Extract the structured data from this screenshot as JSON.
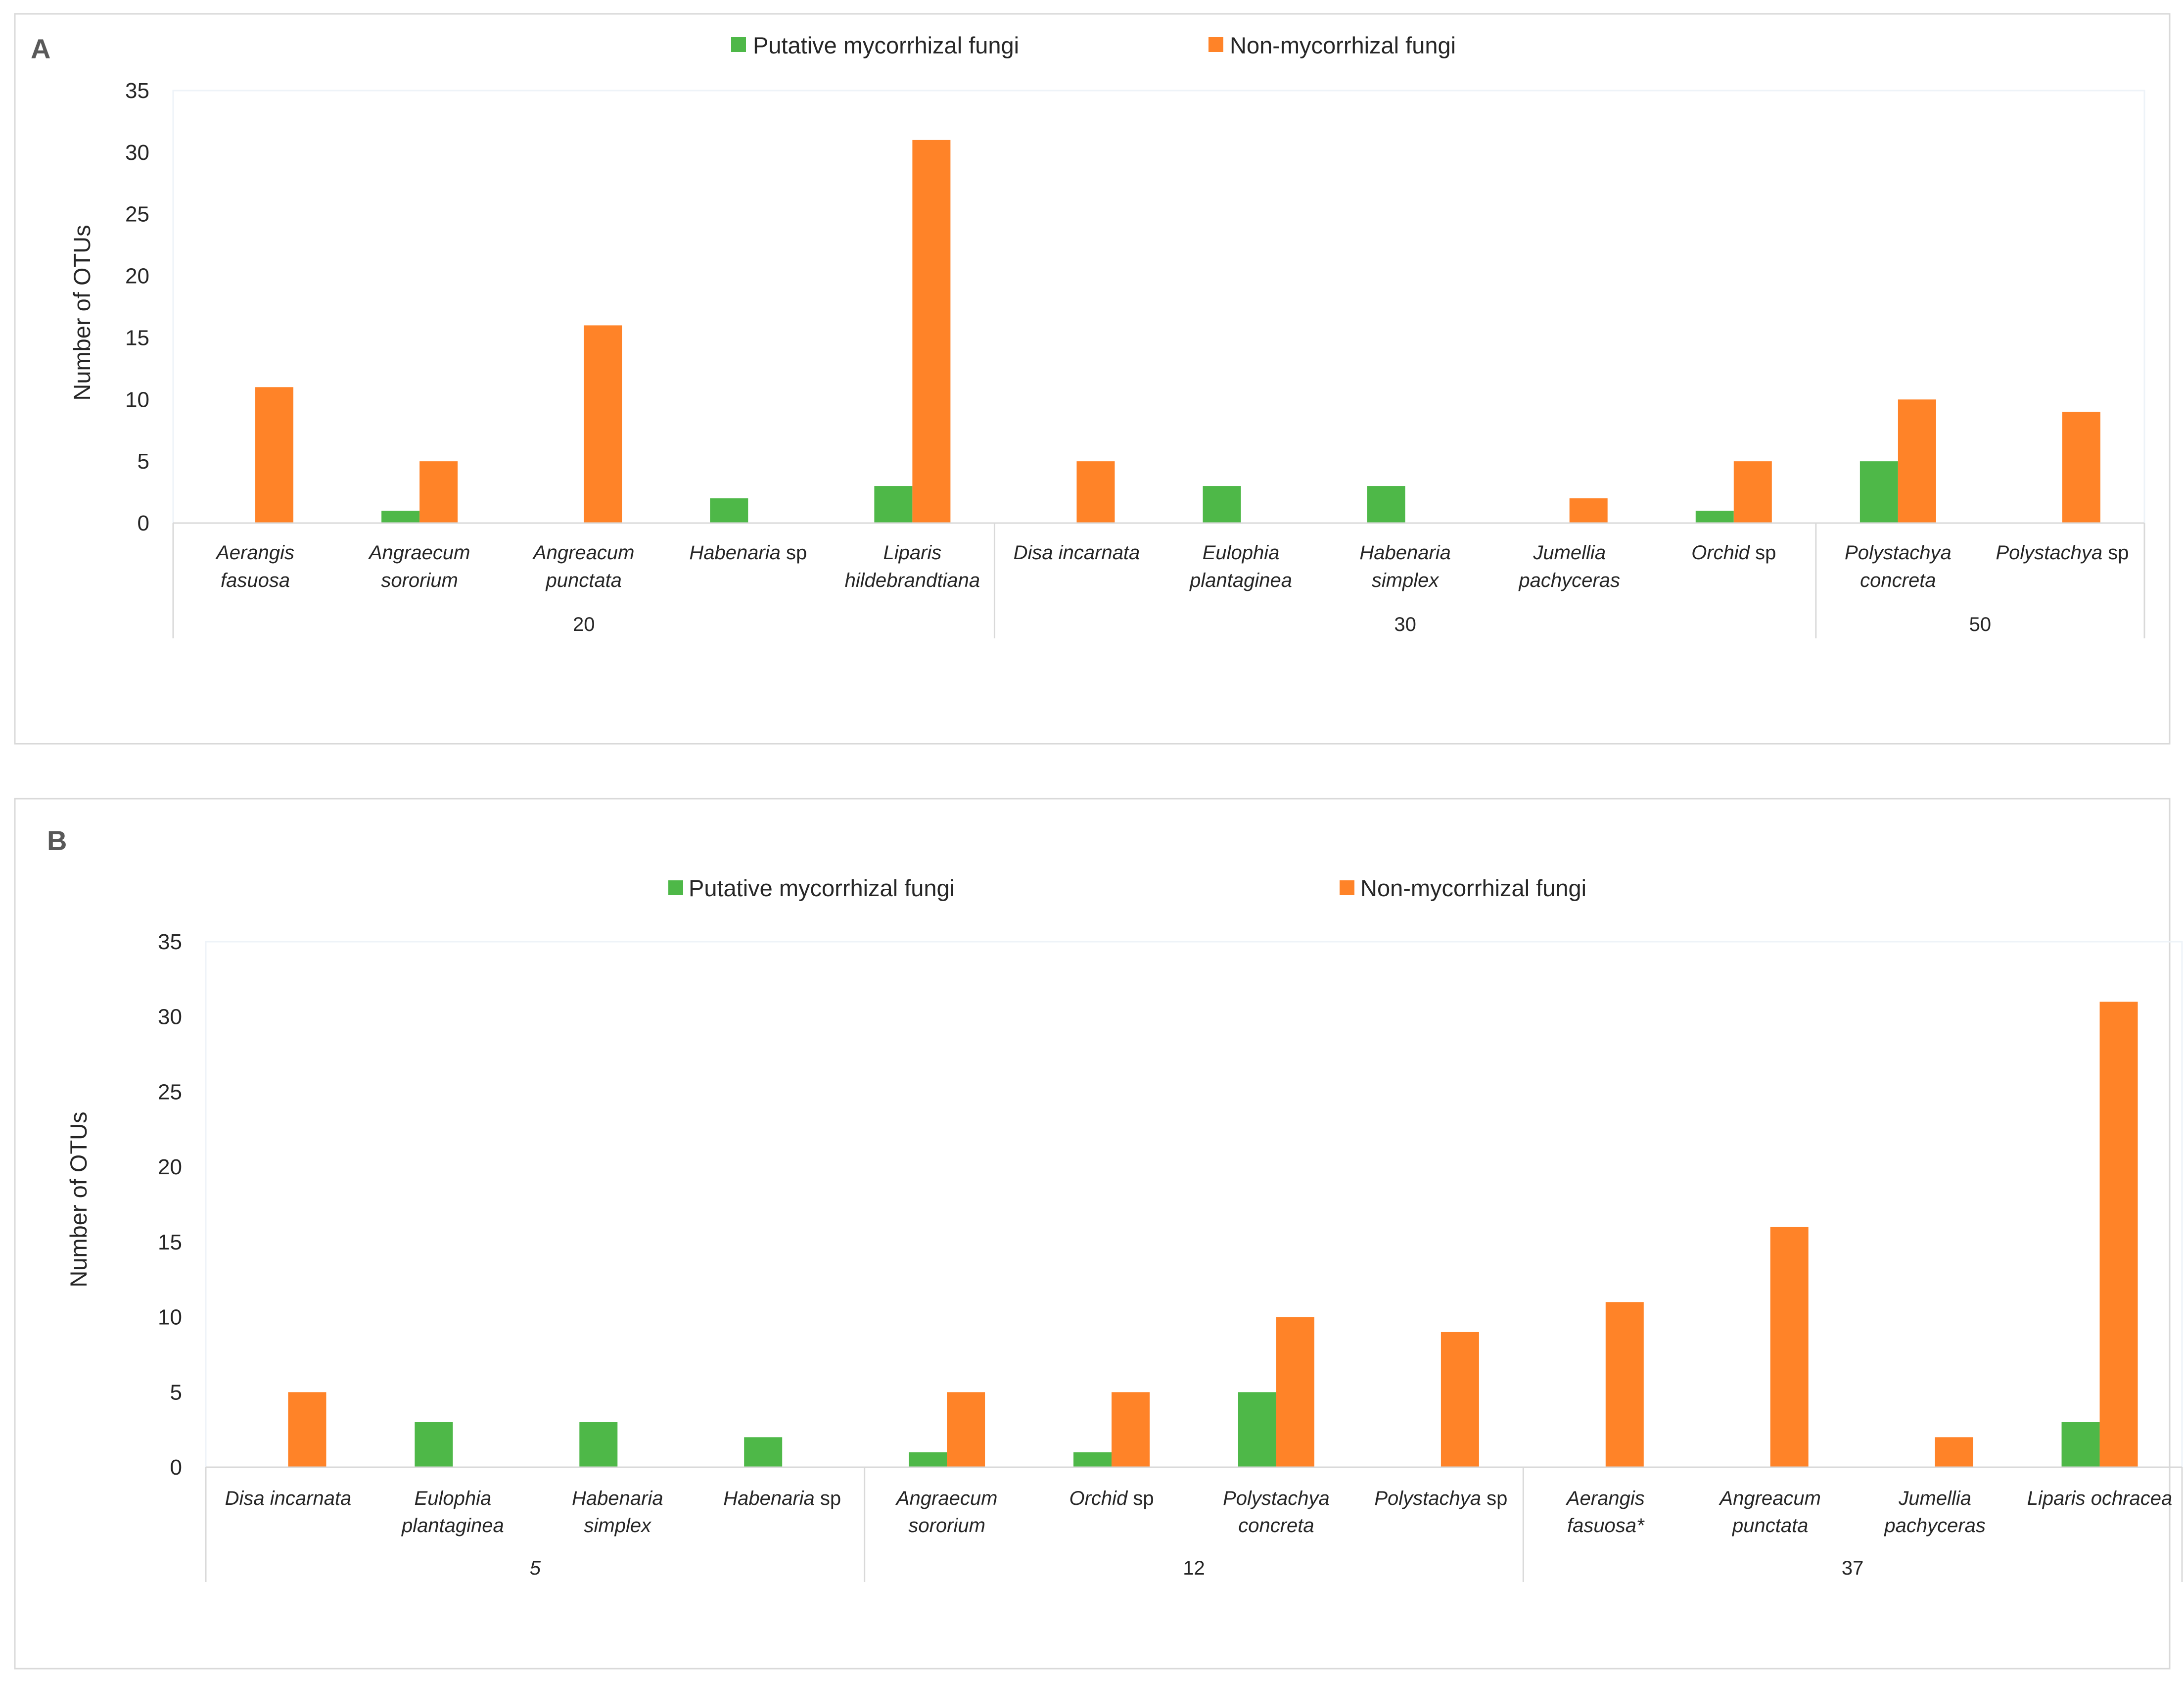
{
  "colors": {
    "mycorrhizal": "#4eb848",
    "non_mycorrhizal": "#ff8328"
  },
  "chart_data": [
    {
      "panel": "A",
      "type": "bar",
      "legend": [
        "Putative mycorrhizal fungi",
        "Non-mycorrhizal fungi"
      ],
      "ylabel": "Number of OTUs",
      "ylim": [
        0,
        35
      ],
      "yticks": [
        0,
        5,
        10,
        15,
        20,
        25,
        30,
        35
      ],
      "categories": [
        {
          "pre": "",
          "ital": "Aerangis",
          "line2": "fasuosa",
          "post": ""
        },
        {
          "pre": "",
          "ital": "Angraecum",
          "line2": "sororium",
          "post": ""
        },
        {
          "pre": "",
          "ital": "Angreacum",
          "line2": "punctata",
          "post": ""
        },
        {
          "pre": "",
          "ital": "Habenaria",
          "line2": "",
          "post": " sp"
        },
        {
          "pre": "",
          "ital": "Liparis",
          "line2": "hildebrandtiana",
          "post": ""
        },
        {
          "pre": "",
          "ital": "Disa incarnata",
          "line2": "",
          "post": ""
        },
        {
          "pre": "",
          "ital": "Eulophia",
          "line2": "plantaginea",
          "post": ""
        },
        {
          "pre": "",
          "ital": "Habenaria",
          "line2": "simplex",
          "post": ""
        },
        {
          "pre": "",
          "ital": "Jumellia",
          "line2": "pachyceras",
          "post": ""
        },
        {
          "pre": "",
          "ital": "Orchid",
          "line2": "",
          "post": " sp"
        },
        {
          "pre": "",
          "ital": "Polystachya",
          "line2": "concreta",
          "post": ""
        },
        {
          "pre": "",
          "ital": "Polystachya",
          "line2": "",
          "post": " sp"
        }
      ],
      "groups": [
        {
          "label": "20",
          "count": 5
        },
        {
          "label": "30",
          "count": 5
        },
        {
          "label": "50",
          "count": 2
        }
      ],
      "series": [
        {
          "name": "Putative mycorrhizal fungi",
          "values": [
            0,
            1,
            0,
            2,
            3,
            0,
            3,
            3,
            0,
            1,
            5,
            0
          ]
        },
        {
          "name": "Non-mycorrhizal fungi",
          "values": [
            11,
            5,
            16,
            0,
            31,
            5,
            0,
            0,
            2,
            5,
            10,
            9
          ]
        }
      ]
    },
    {
      "panel": "B",
      "type": "bar",
      "legend": [
        "Putative mycorrhizal fungi",
        "Non-mycorrhizal fungi"
      ],
      "ylabel": "Number of OTUs",
      "ylim": [
        0,
        35
      ],
      "yticks": [
        0,
        5,
        10,
        15,
        20,
        25,
        30,
        35
      ],
      "categories": [
        {
          "pre": "",
          "ital": "Disa incarnata",
          "line2": "",
          "post": ""
        },
        {
          "pre": "",
          "ital": "Eulophia",
          "line2": "plantaginea",
          "post": ""
        },
        {
          "pre": "",
          "ital": "Habenaria",
          "line2": "simplex",
          "post": ""
        },
        {
          "pre": "",
          "ital": "Habenaria",
          "line2": "",
          "post": " sp"
        },
        {
          "pre": "",
          "ital": "Angraecum",
          "line2": "sororium",
          "post": ""
        },
        {
          "pre": "",
          "ital": "Orchid",
          "line2": "",
          "post": " sp"
        },
        {
          "pre": "",
          "ital": "Polystachya",
          "line2": "concreta",
          "post": ""
        },
        {
          "pre": "",
          "ital": "Polystachya",
          "line2": "",
          "post": " sp"
        },
        {
          "pre": "",
          "ital": "Aerangis",
          "line2": "fasuosa*",
          "post": ""
        },
        {
          "pre": "",
          "ital": "Angreacum",
          "line2": "punctata",
          "post": ""
        },
        {
          "pre": "",
          "ital": "Jumellia",
          "line2": "pachyceras",
          "post": ""
        },
        {
          "pre": "",
          "ital": "Liparis ochracea",
          "line2": "",
          "post": ""
        }
      ],
      "groups": [
        {
          "label": "5",
          "count": 4
        },
        {
          "label": "12",
          "count": 4
        },
        {
          "label": "37",
          "count": 4
        }
      ],
      "series": [
        {
          "name": "Putative mycorrhizal fungi",
          "values": [
            0,
            3,
            3,
            2,
            1,
            1,
            5,
            0,
            0,
            0,
            0,
            3
          ]
        },
        {
          "name": "Non-mycorrhizal fungi",
          "values": [
            5,
            0,
            0,
            0,
            5,
            5,
            10,
            9,
            11,
            16,
            2,
            31
          ]
        }
      ]
    }
  ]
}
